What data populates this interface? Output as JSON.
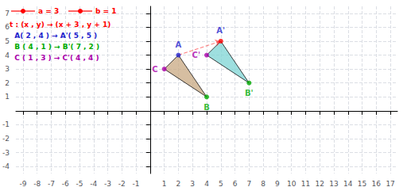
{
  "chart_data": {
    "type": "polygon",
    "xlim": [
      -9.5,
      17.5
    ],
    "ylim": [
      -4.5,
      7.5
    ],
    "xticks": [
      -9,
      -8,
      -7,
      -6,
      -5,
      -4,
      -3,
      -2,
      -1,
      {
        "value": 0,
        "label": null
      },
      1,
      2,
      3,
      4,
      5,
      6,
      7,
      8,
      9,
      10,
      11,
      12,
      13,
      14,
      15,
      16,
      17
    ],
    "yticks": [
      -4,
      -3,
      -2,
      -1,
      1,
      2,
      3,
      4,
      5,
      6,
      7
    ],
    "grid": true,
    "series": [
      {
        "type": "polygon",
        "color": "#c8a882",
        "x": [
          2,
          4,
          1
        ],
        "y": [
          4,
          1,
          3
        ],
        "labels": [
          "A",
          "B",
          "C"
        ],
        "colors": [
          "#2222cc",
          "#00aa00",
          "#aa00aa"
        ],
        "label_colors": [
          "#2222cc",
          "#00aa00",
          "#aa00aa"
        ]
      },
      {
        "type": "polygon",
        "color": "#7dd4d4",
        "x": [
          5,
          7,
          4
        ],
        "y": [
          5,
          2,
          4
        ],
        "labels": [
          "A'",
          "B'",
          "C'"
        ],
        "colors": [
          "#ff0000",
          "#00aa00",
          "#aa00aa"
        ],
        "label_colors": [
          "#2222cc",
          "#00aa00",
          "#aa00aa"
        ]
      }
    ],
    "arrows": [
      {
        "from": [
          2,
          4
        ],
        "to": [
          5,
          5
        ],
        "color": "#ff0000",
        "line_style": "dashed"
      }
    ],
    "annotations": [
      {
        "text": "t : (x , y) → (x + 3 , y + 1)",
        "color": "#ff0000"
      },
      {
        "text": "  A( 2 , 4 ) → A'( 5 , 5 )",
        "color": "#2222cc"
      },
      {
        "text": "  B ( 4 , 1 ) → B'( 7 , 2 )",
        "color": "#00aa00"
      },
      {
        "text": "  C ( 1 , 3 ) → C'( 4 , 4 )",
        "color": "#aa00aa"
      }
    ],
    "sliders": [
      {
        "label": "a = 3",
        "color": "#ff0000"
      },
      {
        "label": "b = 1",
        "color": "#ff0000"
      }
    ]
  }
}
